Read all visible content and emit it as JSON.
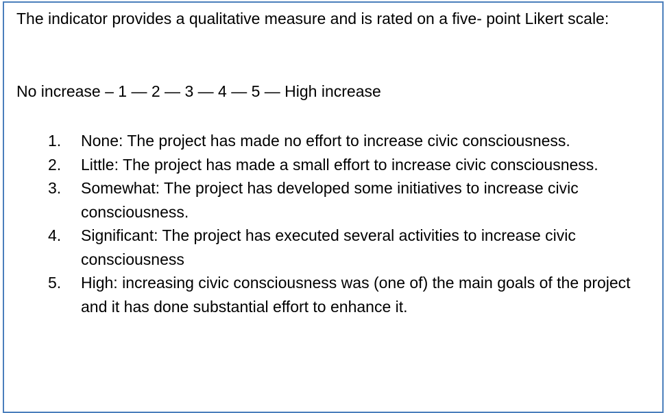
{
  "intro": "The indicator provides a qualitative measure and is rated on a five- point Likert scale:",
  "scale": "No increase – 1 — 2 — 3 — 4 — 5 — High increase",
  "items": [
    {
      "num": "1.",
      "text": "None: The project has made no effort to increase civic consciousness."
    },
    {
      "num": "2.",
      "text": "Little: The project has made a small effort to increase civic consciousness."
    },
    {
      "num": "3.",
      "text": "Somewhat: The project has developed some initiatives to increase civic consciousness."
    },
    {
      "num": "4.",
      "text": "Significant: The project has executed several activities to increase civic consciousness"
    },
    {
      "num": "5.",
      "text": "High: increasing civic consciousness was (one of) the main goals of the project and it has done substantial effort to enhance it."
    }
  ],
  "colors": {
    "border": "#4a7ebb",
    "text": "#000000"
  }
}
